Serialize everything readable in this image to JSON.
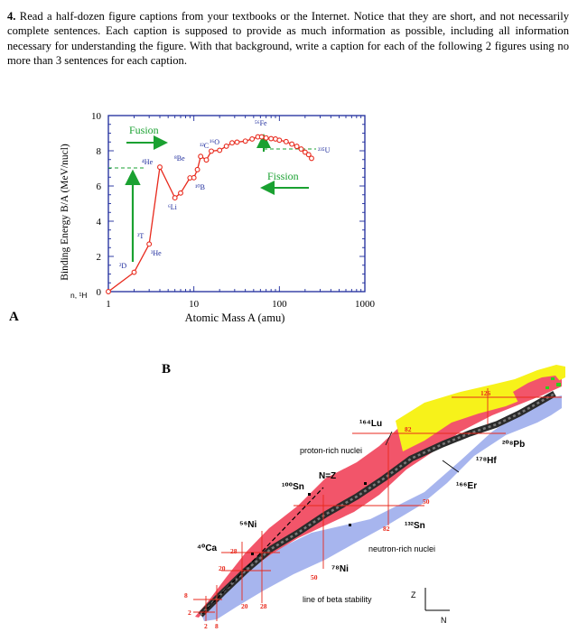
{
  "question": {
    "number": "4.",
    "text": "Read a half-dozen figure captions from your textbooks or the Internet. Notice that they are short, and not necessarily complete sentences. Each caption is supposed to provide as much information as possible, including all information necessary for understanding the figure. With that background, write a caption for each of the following 2 figures using no more than 3 sentences for each caption."
  },
  "figure_a": {
    "label": "A",
    "ylabel": "Binding Energy B/A (MeV/nucl)",
    "xlabel": "Atomic Mass A (amu)",
    "y_ticks": [
      "0",
      "2",
      "4",
      "6",
      "8",
      "10"
    ],
    "x_ticks": [
      "1",
      "10",
      "100",
      "1000"
    ],
    "x_origin_labels": "n, ¹H",
    "fusion_label": "Fusion",
    "fission_label": "Fission",
    "nuclides": {
      "n": "n",
      "h1": "¹H",
      "d": "²D",
      "t": "³T",
      "he3": "³He",
      "he4": "⁴He",
      "li6": "⁶Li",
      "be": "⁸Be",
      "b10": "¹⁰B",
      "c12": "¹²C",
      "o16": "¹⁶O",
      "fe56": "⁵⁶Fe",
      "u235": "²³⁵U"
    },
    "colors": {
      "curve": "#e8291c",
      "arrows": "#1aa131",
      "axis": "#1c2a9c"
    }
  },
  "chart_data": {
    "type": "line",
    "title": "",
    "xlabel": "Atomic Mass A (amu)",
    "ylabel": "Binding Energy B/A (MeV/nucl)",
    "x_scale": "log",
    "xlim": [
      1,
      1000
    ],
    "ylim": [
      0,
      10
    ],
    "series": [
      {
        "name": "Binding energy per nucleon",
        "x": [
          1,
          2,
          3,
          4,
          6,
          7,
          9,
          10,
          11,
          12,
          14,
          16,
          20,
          24,
          28,
          32,
          40,
          48,
          56,
          62,
          70,
          80,
          90,
          100,
          120,
          140,
          160,
          180,
          200,
          220,
          238
        ],
        "y": [
          0,
          1.1,
          2.7,
          7.07,
          5.33,
          5.6,
          6.46,
          6.47,
          6.93,
          7.68,
          7.48,
          7.98,
          8.03,
          8.26,
          8.45,
          8.49,
          8.55,
          8.67,
          8.79,
          8.79,
          8.73,
          8.69,
          8.67,
          8.6,
          8.52,
          8.38,
          8.25,
          8.1,
          7.92,
          7.78,
          7.57
        ]
      }
    ]
  },
  "figure_b": {
    "label": "B",
    "labels": {
      "lu": "¹⁶⁴Lu",
      "pb": "²⁰⁸Pb",
      "hf": "¹⁷⁸Hf",
      "er": "¹⁶⁶Er",
      "sn100": "¹⁰⁰Sn",
      "sn132": "¹³²Sn",
      "ni56": "⁵⁶Ni",
      "ni78": "⁷⁸Ni",
      "ca": "⁴⁰Ca",
      "nz": "N=Z",
      "proton_rich": "proton-rich nuclei",
      "neutron_rich": "neutron-rich nuclei",
      "beta": "line of beta stability",
      "z": "Z",
      "n": "N"
    },
    "magic_numbers": [
      "2",
      "8",
      "20",
      "28",
      "50",
      "82",
      "126"
    ],
    "colors": {
      "proton_rich": "#f2556a",
      "neutron_rich": "#a7b5ee",
      "stable": "#2b2b2b",
      "heavy": "#f7f21a",
      "magic": "#e8291c"
    }
  }
}
